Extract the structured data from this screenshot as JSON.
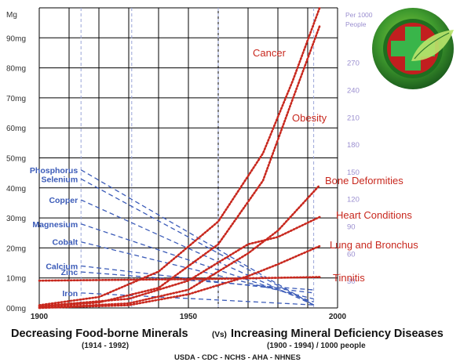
{
  "chart_data": {
    "type": "line",
    "title": "Decreasing Food-borne Minerals",
    "title_vs": "(Vs)",
    "title_right": "Increasing Mineral Deficiency Diseases",
    "subtitle_left": "(1914 - 1992)",
    "subtitle_right": "(1900 - 1994) / 1000 people",
    "sources": "USDA - CDC - NCHS - AHA - NHNES",
    "left_axis": {
      "unit_label": "Mg",
      "range": [
        0,
        100
      ],
      "ticks": [
        "00mg",
        "10mg",
        "20mg",
        "30mg",
        "40mg",
        "50mg",
        "60mg",
        "70mg",
        "80mg",
        "90mg"
      ]
    },
    "right_axis": {
      "unit_label_line1": "Per 1000",
      "unit_label_line2": "People",
      "range": [
        0,
        330
      ],
      "ticks": [
        "30",
        "60",
        "90",
        "120",
        "150",
        "180",
        "210",
        "240",
        "270"
      ]
    },
    "x_axis": {
      "range": [
        1900,
        2000
      ],
      "ticks": [
        "1900",
        "1950",
        "2000"
      ]
    },
    "minerals": [
      {
        "name": "Phosphorus",
        "x": [
          1914,
          1992
        ],
        "y": [
          46,
          1
        ]
      },
      {
        "name": "Selenium",
        "x": [
          1914,
          1992
        ],
        "y": [
          43,
          1
        ]
      },
      {
        "name": "Copper",
        "x": [
          1914,
          1992
        ],
        "y": [
          36,
          1
        ]
      },
      {
        "name": "Magnesium",
        "x": [
          1914,
          1992
        ],
        "y": [
          28,
          2
        ]
      },
      {
        "name": "Cobalt",
        "x": [
          1914,
          1992
        ],
        "y": [
          22,
          3
        ]
      },
      {
        "name": "Calcium",
        "x": [
          1914,
          1992
        ],
        "y": [
          14,
          5
        ]
      },
      {
        "name": "Zinc",
        "x": [
          1914,
          1992
        ],
        "y": [
          12,
          6
        ]
      },
      {
        "name": "Iron",
        "x": [
          1914,
          1992
        ],
        "y": [
          5,
          1
        ]
      }
    ],
    "diseases": [
      {
        "name": "Cancer",
        "x": [
          1900,
          1920,
          1940,
          1960,
          1975,
          1985,
          1994
        ],
        "y": [
          3,
          12,
          40,
          95,
          170,
          250,
          330
        ]
      },
      {
        "name": "Obesity",
        "x": [
          1900,
          1920,
          1940,
          1960,
          1975,
          1985,
          1994
        ],
        "y": [
          1,
          6,
          22,
          70,
          140,
          230,
          310
        ]
      },
      {
        "name": "Bone Deformities",
        "x": [
          1900,
          1930,
          1950,
          1970,
          1980,
          1994
        ],
        "y": [
          0,
          5,
          20,
          60,
          85,
          135
        ]
      },
      {
        "name": "Heart Conditions",
        "x": [
          1900,
          1930,
          1950,
          1970,
          1980,
          1994
        ],
        "y": [
          2,
          10,
          30,
          70,
          78,
          100
        ]
      },
      {
        "name": "Lung and Bronchus",
        "x": [
          1900,
          1930,
          1950,
          1970,
          1980,
          1994
        ],
        "y": [
          0,
          3,
          15,
          35,
          48,
          68
        ]
      },
      {
        "name": "Tinnitis",
        "x": [
          1900,
          1930,
          1960,
          1994
        ],
        "y": [
          30,
          31,
          32,
          34
        ]
      }
    ]
  },
  "colors": {
    "mineral": "#3b5bb8",
    "disease": "#c8281e",
    "grid": "#000000",
    "right_axis": "#9b8fd0",
    "logo_outer": "#2d8a2d",
    "logo_inner": "#c21f1f",
    "logo_cross": "#39b54a"
  },
  "logo": {
    "icon": "medical-cross-leaf-icon"
  }
}
